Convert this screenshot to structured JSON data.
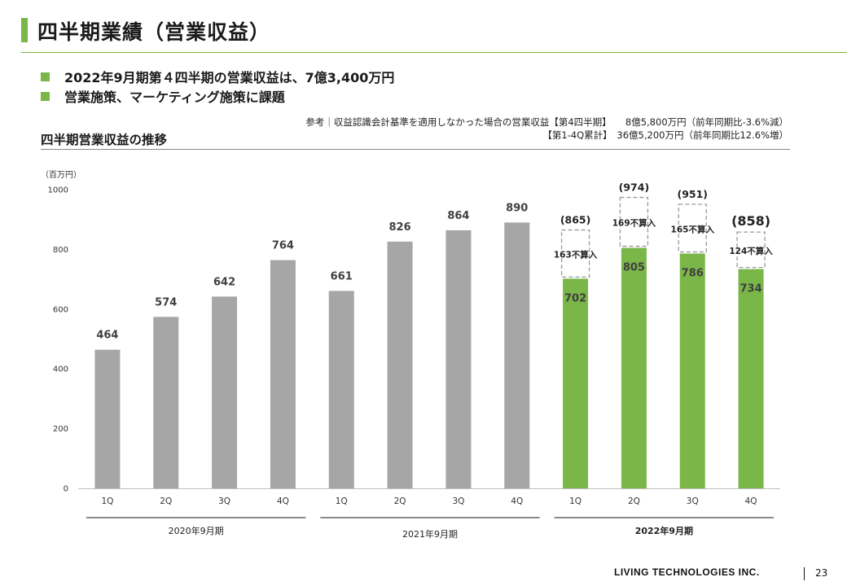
{
  "header": {
    "title": "四半期業績（営業収益）"
  },
  "bullets": [
    "2022年9月期第４四半期の営業収益は、7億3,400万円",
    "営業施策、マーケティング施策に課題"
  ],
  "notes": {
    "line1": "参考｜収益認識会計基準を適用しなかった場合の営業収益【第4四半期】　　8億5,800万円（前年同期比-3.6%減）",
    "line2": "【第1-4Q累計】　36億5,200万円（前年同期比12.6%増）"
  },
  "section_title": "四半期営業収益の推移",
  "unit_label": "（百万円）",
  "colors": {
    "accent": "#7ab648",
    "gray_bar": "#a6a6a6",
    "green_bar": "#7ab648"
  },
  "chart_data": {
    "type": "bar",
    "ylim": [
      0,
      1000
    ],
    "yticks": [
      0,
      200,
      400,
      600,
      800,
      1000
    ],
    "categories": [
      "1Q",
      "2Q",
      "3Q",
      "4Q",
      "1Q",
      "2Q",
      "3Q",
      "4Q",
      "1Q",
      "2Q",
      "3Q",
      "4Q"
    ],
    "groups": [
      "2020年9月期",
      "2021年9月期",
      "2022年9月期"
    ],
    "values": [
      464,
      574,
      642,
      764,
      661,
      826,
      864,
      890,
      702,
      805,
      786,
      734
    ],
    "value_labels": [
      "464",
      "574",
      "642",
      "764",
      "661",
      "826",
      "864",
      "890",
      "702",
      "805",
      "786",
      "734"
    ],
    "bar_color_keys": [
      "gray",
      "gray",
      "gray",
      "gray",
      "gray",
      "gray",
      "gray",
      "gray",
      "green",
      "green",
      "green",
      "green"
    ],
    "unrecognized": [
      null,
      null,
      null,
      null,
      null,
      null,
      null,
      null,
      163,
      169,
      165,
      124
    ],
    "unrecognized_labels": [
      null,
      null,
      null,
      null,
      null,
      null,
      null,
      null,
      "163不算入",
      "169不算入",
      "165不算入",
      "124不算入"
    ],
    "total_labels": [
      null,
      null,
      null,
      null,
      null,
      null,
      null,
      null,
      "(865)",
      "(974)",
      "(951)",
      "(858)"
    ]
  },
  "footer": {
    "logo": "LIVING TECHNOLOGIES INC.",
    "page": "23"
  }
}
